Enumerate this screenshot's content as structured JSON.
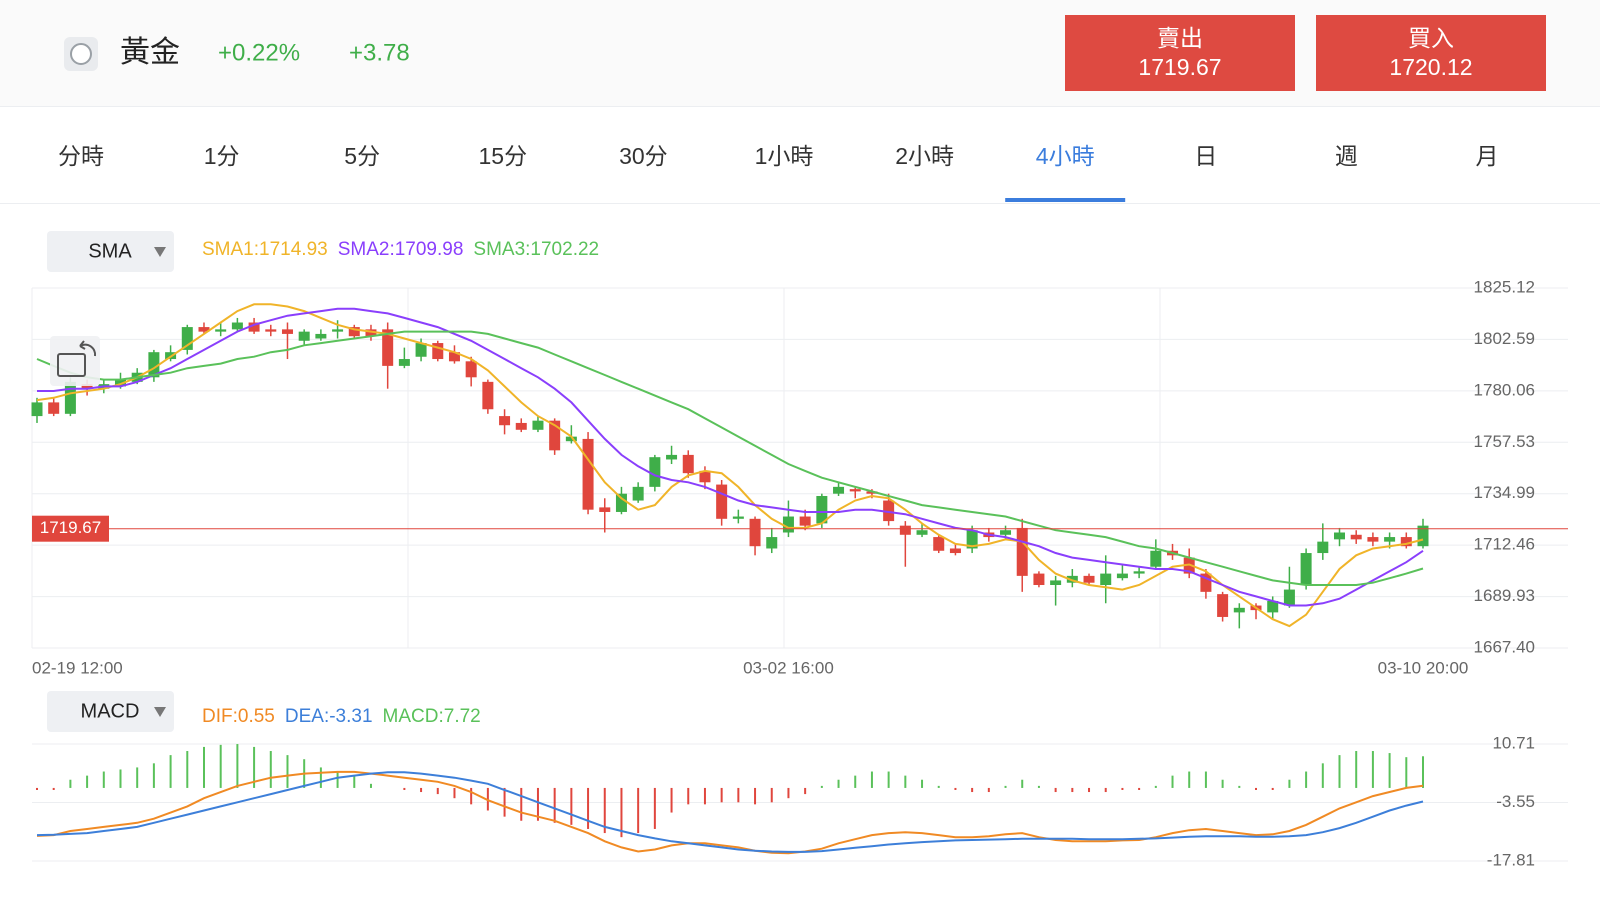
{
  "header": {
    "name": "黃金",
    "change_percent": "+0.22%",
    "change": "+3.78",
    "sell_label": "賣出",
    "sell_price": "1719.67",
    "buy_label": "買入",
    "buy_price": "1720.12"
  },
  "tabs": {
    "items": [
      "分時",
      "1分",
      "5分",
      "15分",
      "30分",
      "1小時",
      "2小時",
      "4小時",
      "日",
      "週",
      "月"
    ],
    "active": 7
  },
  "chart_data": [
    {
      "type": "candlestick",
      "indicator": "SMA",
      "up_color": "#3fae49",
      "down_color": "#e0463d",
      "categories": [
        "02-19 12:00",
        null,
        null,
        null,
        null,
        null,
        null,
        null,
        null,
        null,
        null,
        null,
        null,
        null,
        null,
        null,
        null,
        null,
        null,
        null,
        null,
        null,
        null,
        null,
        null,
        null,
        null,
        null,
        null,
        null,
        null,
        null,
        null,
        null,
        null,
        null,
        null,
        null,
        null,
        null,
        null,
        null,
        null,
        null,
        null,
        "03-02 16:00",
        null,
        null,
        null,
        null,
        null,
        null,
        null,
        null,
        null,
        null,
        null,
        null,
        null,
        null,
        null,
        null,
        null,
        null,
        null,
        null,
        null,
        null,
        null,
        null,
        null,
        null,
        null,
        null,
        null,
        null,
        null,
        null,
        null,
        null,
        null,
        null,
        null,
        "03-10 20:00"
      ],
      "open": [
        1769,
        1775,
        1770,
        1783,
        1781,
        1782,
        1784,
        1786,
        1794,
        1798,
        1808,
        1806,
        1807,
        1810,
        1807,
        1807,
        1802,
        1803,
        1806,
        1808,
        1807,
        1807,
        1791,
        1795,
        1801,
        1797,
        1793,
        1784,
        1769,
        1766,
        1763,
        1767,
        1758,
        1759,
        1729,
        1727,
        1732,
        1738,
        1750,
        1752,
        1745,
        1739,
        1724,
        1724,
        1711,
        1718,
        1725,
        1722,
        1735,
        1737,
        1736,
        1732,
        1721,
        1717,
        1716,
        1711,
        1711,
        1718,
        1717,
        1720,
        1700,
        1695,
        1696,
        1699,
        1695,
        1698,
        1700,
        1703,
        1710,
        1707,
        1700,
        1691,
        1683,
        1686,
        1683,
        1686,
        1695,
        1709,
        1715,
        1717,
        1716,
        1714,
        1716,
        1712
      ],
      "high": [
        1777,
        1777,
        1786,
        1785,
        1785,
        1788,
        1790,
        1798,
        1800,
        1809,
        1810,
        1810,
        1812,
        1812,
        1809,
        1810,
        1807,
        1807,
        1811,
        1809,
        1809,
        1810,
        1799,
        1803,
        1802,
        1800,
        1795,
        1785,
        1772,
        1768,
        1769,
        1768,
        1765,
        1762,
        1733,
        1738,
        1740,
        1752,
        1756,
        1754,
        1747,
        1741,
        1728,
        1725,
        1720,
        1732,
        1728,
        1735,
        1740,
        1738,
        1737,
        1735,
        1723,
        1722,
        1717,
        1713,
        1721,
        1720,
        1721,
        1724,
        1701,
        1699,
        1702,
        1700,
        1708,
        1704,
        1703,
        1715,
        1713,
        1711,
        1702,
        1692,
        1687,
        1687,
        1690,
        1703,
        1711,
        1722,
        1720,
        1719,
        1718,
        1718,
        1718,
        1724
      ],
      "low": [
        1766,
        1769,
        1769,
        1778,
        1779,
        1781,
        1783,
        1784,
        1793,
        1796,
        1805,
        1804,
        1806,
        1805,
        1804,
        1794,
        1800,
        1802,
        1803,
        1803,
        1802,
        1781,
        1790,
        1793,
        1793,
        1792,
        1782,
        1770,
        1761,
        1762,
        1762,
        1752,
        1757,
        1726,
        1718,
        1726,
        1731,
        1736,
        1748,
        1742,
        1737,
        1721,
        1722,
        1708,
        1709,
        1716,
        1719,
        1720,
        1734,
        1733,
        1733,
        1721,
        1703,
        1716,
        1709,
        1708,
        1709,
        1714,
        1715,
        1692,
        1694,
        1686,
        1694,
        1695,
        1687,
        1697,
        1698,
        1702,
        1706,
        1698,
        1689,
        1679,
        1676,
        1680,
        1680,
        1685,
        1693,
        1706,
        1712,
        1713,
        1712,
        1711,
        1711,
        1711
      ],
      "close": [
        1775,
        1770,
        1784,
        1781,
        1783,
        1785,
        1788,
        1797,
        1797,
        1808,
        1806,
        1807,
        1810,
        1806,
        1806,
        1805,
        1806,
        1805,
        1807,
        1804,
        1804,
        1791,
        1794,
        1801,
        1794,
        1793,
        1786,
        1772,
        1765,
        1763,
        1767,
        1754,
        1760,
        1728,
        1727,
        1735,
        1738,
        1751,
        1752,
        1744,
        1740,
        1724,
        1725,
        1712,
        1716,
        1725,
        1721,
        1734,
        1738,
        1736,
        1735,
        1723,
        1717,
        1719,
        1710,
        1709,
        1719,
        1716,
        1719,
        1699,
        1695,
        1697,
        1699,
        1696,
        1700,
        1700,
        1701,
        1710,
        1708,
        1700,
        1692,
        1681,
        1685,
        1684,
        1688,
        1693,
        1709,
        1714,
        1718,
        1715,
        1714,
        1716,
        1712,
        1721
      ],
      "series": [
        {
          "name": "SMA1:1714.93",
          "color": "#f0b429",
          "values": [
            1776,
            1777,
            1779,
            1780,
            1781,
            1783,
            1786,
            1790,
            1795,
            1800,
            1805,
            1810,
            1815,
            1818,
            1818,
            1817,
            1815,
            1812,
            1809,
            1807,
            1806,
            1805,
            1803,
            1801,
            1799,
            1797,
            1794,
            1789,
            1782,
            1775,
            1769,
            1765,
            1760,
            1750,
            1740,
            1733,
            1728,
            1730,
            1738,
            1743,
            1745,
            1744,
            1738,
            1730,
            1724,
            1720,
            1720,
            1722,
            1728,
            1732,
            1734,
            1733,
            1728,
            1722,
            1717,
            1713,
            1712,
            1713,
            1715,
            1714,
            1706,
            1700,
            1697,
            1695,
            1694,
            1693,
            1695,
            1699,
            1703,
            1704,
            1701,
            1695,
            1690,
            1685,
            1680,
            1677,
            1682,
            1692,
            1702,
            1708,
            1711,
            1712,
            1713,
            1714.93
          ]
        },
        {
          "name": "SMA2:1709.98",
          "color": "#8a3ffc",
          "values": [
            1780,
            1780,
            1781,
            1781,
            1782,
            1782,
            1784,
            1787,
            1790,
            1794,
            1798,
            1802,
            1806,
            1809,
            1811,
            1813,
            1814,
            1815,
            1816,
            1816,
            1815,
            1814,
            1812,
            1810,
            1808,
            1805,
            1802,
            1798,
            1794,
            1790,
            1786,
            1781,
            1775,
            1767,
            1759,
            1752,
            1747,
            1743,
            1741,
            1740,
            1738,
            1735,
            1732,
            1730,
            1729,
            1728,
            1727,
            1727,
            1727,
            1728,
            1728,
            1727,
            1726,
            1724,
            1722,
            1720,
            1719,
            1717,
            1716,
            1714,
            1712,
            1709,
            1707,
            1706,
            1705,
            1704,
            1703,
            1702,
            1702,
            1701,
            1698,
            1695,
            1692,
            1690,
            1688,
            1686,
            1686,
            1687,
            1689,
            1693,
            1697,
            1701,
            1705,
            1709.98
          ]
        },
        {
          "name": "SMA3:1702.22",
          "color": "#5ac15a",
          "values": [
            1794,
            1791,
            1788,
            1786,
            1785,
            1785,
            1786,
            1787,
            1788,
            1790,
            1791,
            1792,
            1794,
            1795,
            1797,
            1798,
            1800,
            1801,
            1802,
            1803,
            1804,
            1805,
            1806,
            1806,
            1806,
            1806,
            1806,
            1805,
            1803,
            1801,
            1799,
            1796,
            1793,
            1790,
            1787,
            1784,
            1781,
            1778,
            1775,
            1772,
            1768,
            1764,
            1760,
            1756,
            1752,
            1748,
            1745,
            1742,
            1740,
            1738,
            1736,
            1734,
            1732,
            1730,
            1729,
            1728,
            1727,
            1726,
            1725,
            1723,
            1721,
            1719,
            1718,
            1717,
            1716,
            1714,
            1712,
            1711,
            1709,
            1707,
            1705,
            1703,
            1701,
            1699,
            1697,
            1696,
            1695,
            1695,
            1695,
            1695,
            1696,
            1698,
            1700,
            1702.22
          ]
        }
      ],
      "current_price": 1719.67,
      "current_color": "#e0463d",
      "ylim": [
        1667.4,
        1825.12
      ],
      "yticks": [
        1825.12,
        1802.59,
        1780.06,
        1757.53,
        1734.99,
        1712.46,
        1689.93,
        {
          "value": 1667.4,
          "label": "1667.40"
        }
      ],
      "grid": true
    },
    {
      "type": "macd",
      "indicator": "MACD",
      "up_color": "#5ac15a",
      "down_color": "#e0463d",
      "series": [
        {
          "name": "DIF:0.55",
          "color": "#f08a24",
          "style": "line",
          "values": [
            -11.7,
            -11.5,
            -10.5,
            -10,
            -9.5,
            -9,
            -8.5,
            -7.5,
            -6,
            -4.5,
            -2.5,
            -1,
            0.5,
            1.5,
            2.5,
            3,
            3.5,
            3.7,
            3.9,
            3.9,
            3.5,
            3,
            2.5,
            2,
            1.5,
            0.5,
            -1,
            -3,
            -4.5,
            -6,
            -7,
            -8,
            -9.5,
            -11,
            -13,
            -14.5,
            -15.5,
            -15,
            -14,
            -13.5,
            -13.5,
            -14,
            -14.5,
            -15.3,
            -15.8,
            -15.9,
            -15.5,
            -14.8,
            -13.5,
            -12.5,
            -11.5,
            -11,
            -10.8,
            -11,
            -11.5,
            -12,
            -12,
            -11.8,
            -11.3,
            -11,
            -12,
            -12.7,
            -13,
            -13,
            -13,
            -12.8,
            -12.7,
            -12,
            -11,
            -10.3,
            -10,
            -10.5,
            -11,
            -11.5,
            -11.3,
            -10.5,
            -9,
            -7,
            -5,
            -3.5,
            -2,
            -1,
            0,
            0.55
          ]
        },
        {
          "name": "DEA:-3.31",
          "color": "#3d7fd9",
          "style": "line",
          "values": [
            -11.5,
            -11.4,
            -11.2,
            -11,
            -10.5,
            -10,
            -9.5,
            -8.5,
            -7.5,
            -6.5,
            -5.5,
            -4.5,
            -3.5,
            -2.5,
            -1.5,
            -0.5,
            0.5,
            1.5,
            2.5,
            3,
            3.5,
            3.8,
            3.8,
            3.5,
            3,
            2.5,
            1.8,
            1,
            -0.5,
            -2,
            -3.5,
            -5,
            -6.5,
            -8,
            -9.5,
            -10.5,
            -11.5,
            -12.3,
            -13,
            -13.5,
            -14,
            -14.5,
            -15,
            -15.3,
            -15.5,
            -15.6,
            -15.6,
            -15.4,
            -15,
            -14.6,
            -14.2,
            -13.8,
            -13.5,
            -13.2,
            -13,
            -12.8,
            -12.7,
            -12.6,
            -12.5,
            -12.4,
            -12.4,
            -12.4,
            -12.4,
            -12.5,
            -12.5,
            -12.5,
            -12.4,
            -12.3,
            -12.1,
            -11.9,
            -11.8,
            -11.8,
            -11.8,
            -11.9,
            -11.9,
            -11.8,
            -11.5,
            -10.8,
            -9.8,
            -8.5,
            -7,
            -5.5,
            -4.3,
            -3.31
          ]
        },
        {
          "name": "MACD:7.72",
          "color": "#5ac15a",
          "style": "bar",
          "values": [
            -0.5,
            -0.5,
            2,
            3,
            4,
            4.5,
            5,
            6,
            8,
            9,
            10,
            10.5,
            10.7,
            10,
            9,
            8,
            7,
            5,
            4,
            3,
            1,
            0,
            -0.5,
            -1,
            -1.5,
            -2.5,
            -4,
            -5.5,
            -7,
            -8,
            -8,
            -8.5,
            -9,
            -10,
            -11,
            -12,
            -11,
            -10,
            -6,
            -4,
            -4,
            -3.5,
            -3.5,
            -4,
            -3.5,
            -2.5,
            -1.5,
            0.5,
            2,
            3,
            4,
            4,
            3,
            2,
            0.5,
            -0.5,
            -1,
            -1,
            0.5,
            2,
            0.5,
            -1,
            -1,
            -1,
            -1,
            -0.5,
            -0.5,
            0.5,
            3,
            4,
            4,
            2,
            0.5,
            -0.5,
            -0.5,
            2,
            4,
            6,
            8,
            9,
            9,
            8.5,
            7.5,
            7.72
          ]
        }
      ],
      "ylim": [
        -17.81,
        10.71
      ],
      "yticks": [
        10.71,
        -3.55,
        -17.81
      ],
      "grid": true
    }
  ]
}
